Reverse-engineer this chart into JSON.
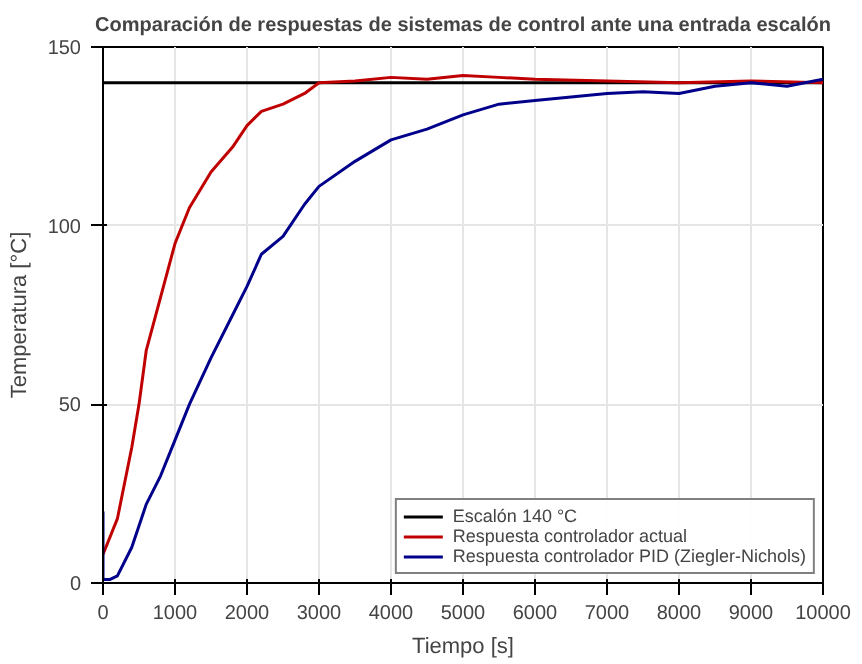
{
  "chart_data": {
    "type": "line",
    "title": "Comparación de respuestas de sistemas de control ante una entrada escalón",
    "xlabel": "Tiempo [s]",
    "ylabel": "Temperatura [°C]",
    "xlim": [
      0,
      10000
    ],
    "xticks": [
      0,
      1000,
      2000,
      3000,
      4000,
      5000,
      6000,
      7000,
      8000,
      9000,
      10000
    ],
    "ylim": [
      0,
      150
    ],
    "yticks": [
      0,
      50,
      100,
      150
    ],
    "grid": true,
    "legend": "bottom right",
    "line_style": "solid",
    "series": [
      {
        "name": "Escalón 140 °C",
        "color": "#000000",
        "x": [
          0,
          10000
        ],
        "values": [
          140,
          140
        ]
      },
      {
        "name": "Respuesta controlador actual",
        "color": "#c00000",
        "x": [
          0,
          200,
          400,
          500,
          600,
          800,
          1000,
          1200,
          1500,
          1800,
          2000,
          2200,
          2500,
          2800,
          3000,
          3500,
          4000,
          4500,
          5000,
          5500,
          6000,
          7000,
          8000,
          9000,
          10000
        ],
        "values": [
          8,
          18,
          38,
          50,
          65,
          80,
          95,
          105,
          115,
          122,
          128,
          132,
          134,
          137,
          140,
          140.5,
          141.5,
          141,
          142,
          141.5,
          141,
          140.5,
          140,
          140.5,
          140
        ]
      },
      {
        "name": "Respuesta controlador PID (Ziegler-Nichols)",
        "color": "#00008b",
        "x": [
          0,
          0,
          100,
          200,
          400,
          600,
          800,
          1000,
          1200,
          1500,
          1800,
          2000,
          2200,
          2500,
          2800,
          3000,
          3500,
          4000,
          4500,
          5000,
          5500,
          6000,
          6500,
          7000,
          7500,
          8000,
          8500,
          9000,
          9500,
          10000
        ],
        "values": [
          20,
          1,
          1,
          2,
          10,
          22,
          30,
          40,
          50,
          63,
          75,
          83,
          92,
          97,
          106,
          111,
          118,
          124,
          127,
          131,
          134,
          135,
          136,
          137,
          137.5,
          137,
          139,
          140,
          139,
          141
        ]
      }
    ]
  }
}
